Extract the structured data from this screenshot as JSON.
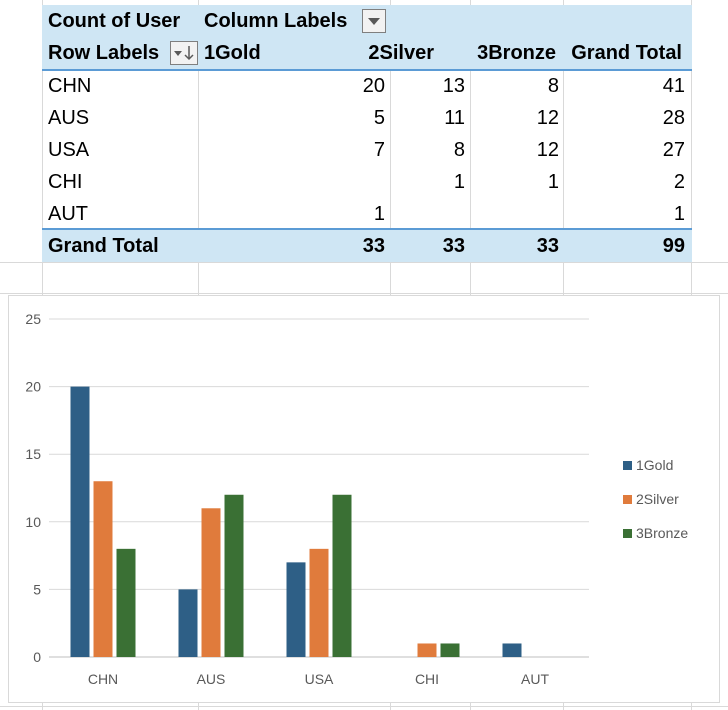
{
  "pivot": {
    "value_field": "Count of User",
    "column_labels": "Column Labels",
    "row_labels": "Row Labels",
    "columns": [
      "1Gold",
      "2Silver",
      "3Bronze",
      "Grand Total"
    ],
    "rows": [
      {
        "label": "CHN",
        "values": [
          "20",
          "13",
          "8",
          "41"
        ]
      },
      {
        "label": "AUS",
        "values": [
          "5",
          "11",
          "12",
          "28"
        ]
      },
      {
        "label": "USA",
        "values": [
          "7",
          "8",
          "12",
          "27"
        ]
      },
      {
        "label": "CHI",
        "values": [
          "",
          "1",
          "1",
          "2"
        ]
      },
      {
        "label": "AUT",
        "values": [
          "1",
          "",
          "",
          "1"
        ]
      }
    ],
    "grand_total": {
      "label": "Grand Total",
      "values": [
        "33",
        "33",
        "33",
        "99"
      ]
    }
  },
  "chart_data": {
    "type": "bar",
    "categories": [
      "CHN",
      "AUS",
      "USA",
      "CHI",
      "AUT"
    ],
    "series": [
      {
        "name": "1Gold",
        "values": [
          20,
          5,
          7,
          0,
          1
        ],
        "color": "#2e5f86"
      },
      {
        "name": "2Silver",
        "values": [
          13,
          11,
          8,
          1,
          0
        ],
        "color": "#e07b3c"
      },
      {
        "name": "3Bronze",
        "values": [
          8,
          12,
          12,
          1,
          0
        ],
        "color": "#3a7034"
      }
    ],
    "yticks": [
      0,
      5,
      10,
      15,
      20,
      25
    ],
    "ylim": [
      0,
      25
    ],
    "legend_position": "right",
    "title": "",
    "xlabel": "",
    "ylabel": ""
  }
}
